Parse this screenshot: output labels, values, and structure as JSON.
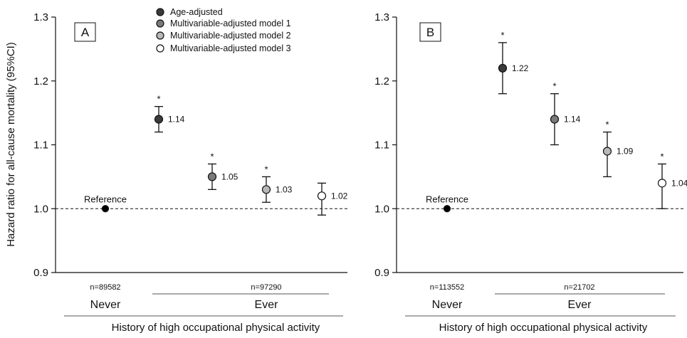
{
  "chart_data": [
    {
      "type": "scatter",
      "panel_label": "A",
      "ylabel": "Hazard ratio for all-cause mortality (95%CI)",
      "xlabel": "History of high occupational physical activity",
      "ylim": [
        0.9,
        1.3
      ],
      "yticks": [
        "0.9",
        "1.0",
        "1.1",
        "1.2",
        "1.3"
      ],
      "reference_line": 1.0,
      "reference_label": "Reference",
      "groups": [
        {
          "label": "Never",
          "n": "n=89582"
        },
        {
          "label": "Ever",
          "n": "n=97290"
        }
      ],
      "points": [
        {
          "group": "Never",
          "series": "reference",
          "value": 1.0,
          "ci": null,
          "label": "",
          "star": false
        },
        {
          "group": "Ever",
          "series": "Age-adjusted",
          "value": 1.14,
          "ci": [
            1.12,
            1.16
          ],
          "label": "1.14",
          "star": true
        },
        {
          "group": "Ever",
          "series": "Multivariable-adjusted model 1",
          "value": 1.05,
          "ci": [
            1.03,
            1.07
          ],
          "label": "1.05",
          "star": true
        },
        {
          "group": "Ever",
          "series": "Multivariable-adjusted model 2",
          "value": 1.03,
          "ci": [
            1.01,
            1.05
          ],
          "label": "1.03",
          "star": true
        },
        {
          "group": "Ever",
          "series": "Multivariable-adjusted model 3",
          "value": 1.02,
          "ci": [
            0.99,
            1.04
          ],
          "label": "1.02",
          "star": false
        }
      ]
    },
    {
      "type": "scatter",
      "panel_label": "B",
      "ylabel": "",
      "xlabel": "History of high occupational physical activity",
      "ylim": [
        0.9,
        1.3
      ],
      "yticks": [
        "0.9",
        "1.0",
        "1.1",
        "1.2",
        "1.3"
      ],
      "reference_line": 1.0,
      "reference_label": "Reference",
      "groups": [
        {
          "label": "Never",
          "n": "n=113552"
        },
        {
          "label": "Ever",
          "n": "n=21702"
        }
      ],
      "points": [
        {
          "group": "Never",
          "series": "reference",
          "value": 1.0,
          "ci": null,
          "label": "",
          "star": false
        },
        {
          "group": "Ever",
          "series": "Age-adjusted",
          "value": 1.22,
          "ci": [
            1.18,
            1.26
          ],
          "label": "1.22",
          "star": true
        },
        {
          "group": "Ever",
          "series": "Multivariable-adjusted model 1",
          "value": 1.14,
          "ci": [
            1.1,
            1.18
          ],
          "label": "1.14",
          "star": true
        },
        {
          "group": "Ever",
          "series": "Multivariable-adjusted model 2",
          "value": 1.09,
          "ci": [
            1.05,
            1.12
          ],
          "label": "1.09",
          "star": true
        },
        {
          "group": "Ever",
          "series": "Multivariable-adjusted model 3",
          "value": 1.04,
          "ci": [
            1.0,
            1.07
          ],
          "label": "1.04",
          "star": true
        }
      ]
    }
  ],
  "legend": {
    "placement": "top (panel A)",
    "items": [
      {
        "name": "Age-adjusted",
        "color": "#3a3a3a"
      },
      {
        "name": "Multivariable-adjusted model 1",
        "color": "#7a7a7a"
      },
      {
        "name": "Multivariable-adjusted model 2",
        "color": "#b8b8b8"
      },
      {
        "name": "Multivariable-adjusted model 3",
        "color": "#ffffff"
      }
    ]
  },
  "colors": {
    "reference": "#000000",
    "axis": "#111111"
  },
  "star_symbol": "*"
}
